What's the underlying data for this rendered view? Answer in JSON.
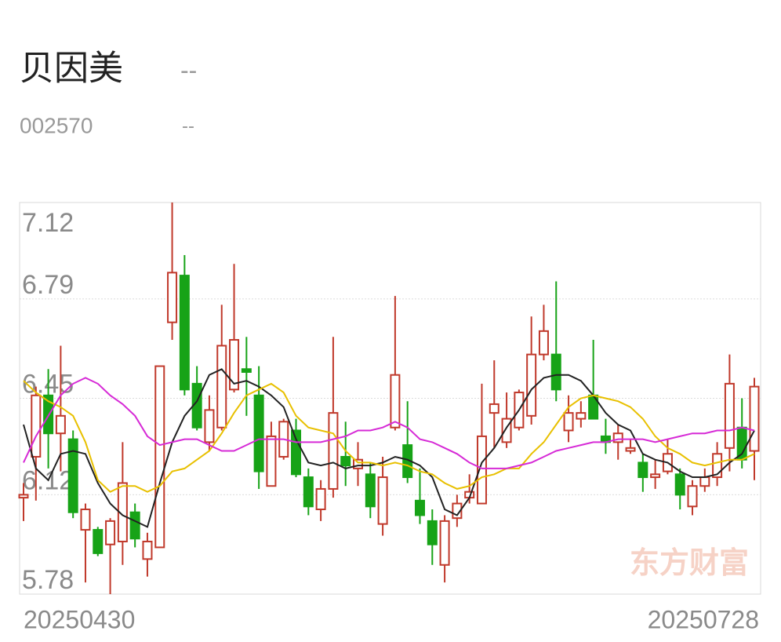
{
  "header": {
    "name": "贝因美",
    "price": "--",
    "code": "002570",
    "change": "--"
  },
  "watermark": "东方财富",
  "chart_data": {
    "type": "candlestick",
    "categories": [
      "20250430",
      null,
      null,
      null,
      null,
      null,
      null,
      null,
      null,
      null,
      null,
      null,
      null,
      null,
      null,
      null,
      null,
      null,
      null,
      null,
      null,
      null,
      null,
      null,
      null,
      null,
      null,
      null,
      null,
      null,
      null,
      null,
      null,
      null,
      null,
      null,
      null,
      null,
      null,
      null,
      null,
      null,
      null,
      null,
      null,
      null,
      null,
      null,
      null,
      null,
      null,
      null,
      null,
      null,
      null,
      null,
      null,
      null,
      null,
      "20250728"
    ],
    "open": [
      6.11,
      6.25,
      6.46,
      6.33,
      6.31,
      6.0,
      6.0,
      5.95,
      5.96,
      6.06,
      5.9,
      5.94,
      6.71,
      6.87,
      6.5,
      6.3,
      6.35,
      6.48,
      6.55,
      6.46,
      6.15,
      6.25,
      6.34,
      6.18,
      6.07,
      6.14,
      6.25,
      6.21,
      6.19,
      6.02,
      6.35,
      6.29,
      6.1,
      6.03,
      5.88,
      6.04,
      6.11,
      6.09,
      6.4,
      6.3,
      6.35,
      6.39,
      6.6,
      6.6,
      6.34,
      6.38,
      6.46,
      6.32,
      6.3,
      6.27,
      6.23,
      6.18,
      6.2,
      6.19,
      6.08,
      6.15,
      6.18,
      6.28,
      6.35,
      6.27
    ],
    "high": [
      6.16,
      6.49,
      6.55,
      6.63,
      6.34,
      6.09,
      6.01,
      6.04,
      6.3,
      6.09,
      5.99,
      6.56,
      7.12,
      6.94,
      6.56,
      6.46,
      6.77,
      6.91,
      6.66,
      6.56,
      6.37,
      6.38,
      6.38,
      6.21,
      6.17,
      6.66,
      6.37,
      6.3,
      6.23,
      6.25,
      6.8,
      6.44,
      6.21,
      6.07,
      6.05,
      6.12,
      6.19,
      6.5,
      6.58,
      6.47,
      6.48,
      6.73,
      6.77,
      6.85,
      6.46,
      6.44,
      6.65,
      6.38,
      6.36,
      6.31,
      6.26,
      6.24,
      6.31,
      6.21,
      6.17,
      6.21,
      6.3,
      6.6,
      6.45,
      6.52
    ],
    "low": [
      6.03,
      6.1,
      6.21,
      6.2,
      6.04,
      5.82,
      5.91,
      5.78,
      5.88,
      5.94,
      5.84,
      5.94,
      6.65,
      6.46,
      6.34,
      6.27,
      6.34,
      6.47,
      6.39,
      6.14,
      6.15,
      6.24,
      6.18,
      6.05,
      6.03,
      6.11,
      6.15,
      6.15,
      6.04,
      5.98,
      6.34,
      6.16,
      6.02,
      5.88,
      5.82,
      6.01,
      6.09,
      6.09,
      6.28,
      6.28,
      6.34,
      6.36,
      6.58,
      6.44,
      6.3,
      6.35,
      6.38,
      6.26,
      6.24,
      6.26,
      6.13,
      6.14,
      6.19,
      6.07,
      6.05,
      6.13,
      6.15,
      6.2,
      6.21,
      6.17
    ],
    "close": [
      6.12,
      6.46,
      6.33,
      6.39,
      6.06,
      6.07,
      5.92,
      6.03,
      6.16,
      5.97,
      5.96,
      6.56,
      6.88,
      6.48,
      6.35,
      6.41,
      6.63,
      6.65,
      6.54,
      6.2,
      6.32,
      6.37,
      6.19,
      6.08,
      6.14,
      6.4,
      6.22,
      6.24,
      6.08,
      6.18,
      6.53,
      6.18,
      6.05,
      5.95,
      6.03,
      6.09,
      6.13,
      6.32,
      6.43,
      6.38,
      6.47,
      6.6,
      6.68,
      6.48,
      6.4,
      6.4,
      6.38,
      6.3,
      6.33,
      6.28,
      6.18,
      6.19,
      6.26,
      6.12,
      6.15,
      6.18,
      6.26,
      6.5,
      6.24,
      6.49
    ],
    "up_color": "#c0392b",
    "down_color": "#17a317",
    "series": [
      {
        "color": "#222222",
        "values": [
          6.36,
          6.21,
          6.17,
          6.26,
          6.27,
          6.26,
          6.16,
          6.09,
          6.05,
          6.03,
          6.01,
          6.16,
          6.3,
          6.39,
          6.44,
          6.53,
          6.55,
          6.5,
          6.51,
          6.49,
          6.46,
          6.42,
          6.31,
          6.23,
          6.22,
          6.23,
          6.21,
          6.22,
          6.22,
          6.23,
          6.25,
          6.24,
          6.22,
          6.18,
          6.07,
          6.05,
          6.11,
          6.23,
          6.28,
          6.35,
          6.41,
          6.48,
          6.52,
          6.53,
          6.53,
          6.51,
          6.46,
          6.4,
          6.36,
          6.34,
          6.26,
          6.24,
          6.23,
          6.2,
          6.18,
          6.18,
          6.19,
          6.23,
          6.26,
          6.34
        ]
      },
      {
        "color": "#e8c000",
        "values": [
          6.51,
          6.47,
          6.44,
          6.42,
          6.39,
          6.3,
          6.17,
          6.13,
          6.15,
          6.15,
          6.13,
          6.15,
          6.2,
          6.21,
          6.24,
          6.27,
          6.33,
          6.4,
          6.46,
          6.48,
          6.5,
          6.47,
          6.39,
          6.35,
          6.34,
          6.33,
          6.27,
          6.23,
          6.23,
          6.22,
          6.23,
          6.22,
          6.2,
          6.19,
          6.16,
          6.14,
          6.15,
          6.18,
          6.19,
          6.21,
          6.21,
          6.26,
          6.3,
          6.36,
          6.42,
          6.45,
          6.46,
          6.45,
          6.44,
          6.42,
          6.38,
          6.32,
          6.28,
          6.26,
          6.23,
          6.22,
          6.23,
          6.24,
          6.24,
          6.26
        ]
      },
      {
        "color": "#d62ad6",
        "values": [
          6.23,
          6.32,
          6.39,
          6.46,
          6.5,
          6.52,
          6.5,
          6.46,
          6.43,
          6.39,
          6.32,
          6.29,
          6.3,
          6.31,
          6.31,
          6.29,
          6.27,
          6.27,
          6.29,
          6.31,
          6.31,
          6.31,
          6.3,
          6.3,
          6.3,
          6.31,
          6.32,
          6.34,
          6.34,
          6.35,
          6.37,
          6.35,
          6.31,
          6.3,
          6.28,
          6.26,
          6.23,
          6.21,
          6.21,
          6.21,
          6.22,
          6.23,
          6.25,
          6.27,
          6.28,
          6.29,
          6.3,
          6.3,
          6.31,
          6.31,
          6.31,
          6.3,
          6.31,
          6.32,
          6.33,
          6.33,
          6.34,
          6.34,
          6.35,
          6.34
        ]
      }
    ],
    "ylim": [
      5.78,
      7.12
    ],
    "yticks": [
      5.78,
      6.12,
      6.45,
      6.79,
      7.12
    ],
    "grid": true
  }
}
